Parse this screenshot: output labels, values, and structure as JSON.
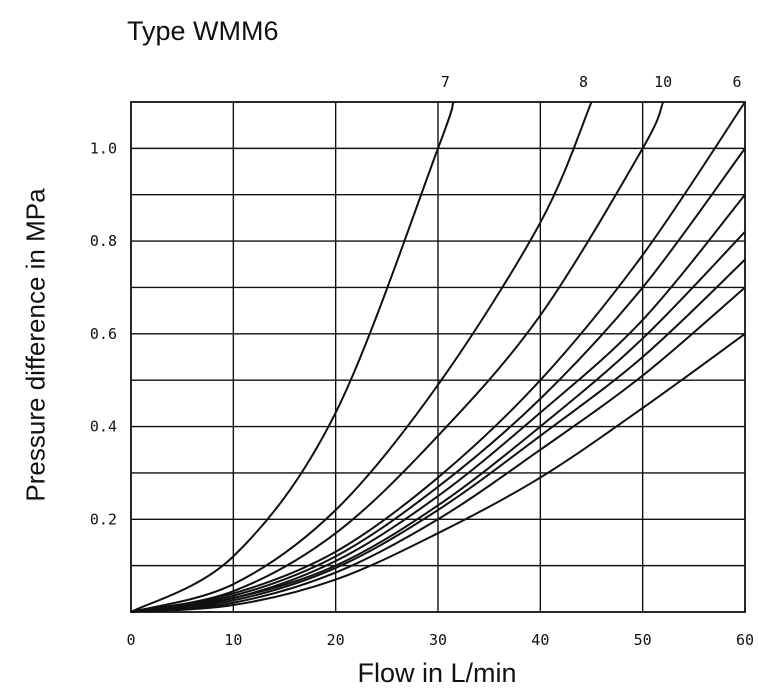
{
  "chart_data": {
    "type": "line",
    "title": "Type WMM6",
    "xlabel": "Flow in L/min",
    "ylabel": "Pressure difference in MPa",
    "xlim": [
      0,
      60
    ],
    "ylim": [
      0,
      1.1
    ],
    "x_ticks": [
      "0",
      "10",
      "20",
      "30",
      "40",
      "50",
      "60"
    ],
    "y_ticks": [
      "0.2",
      "0.4",
      "0.6",
      "0.8",
      "1.0"
    ],
    "grid": true,
    "series": [
      {
        "name": "7",
        "x": [
          0,
          10,
          20,
          30,
          31.5
        ],
        "y": [
          0,
          0.12,
          0.43,
          1.0,
          1.1
        ]
      },
      {
        "name": "8",
        "x": [
          0,
          10,
          20,
          30,
          40,
          45
        ],
        "y": [
          0,
          0.06,
          0.22,
          0.49,
          0.84,
          1.1
        ]
      },
      {
        "name": "10",
        "x": [
          0,
          10,
          20,
          30,
          40,
          50,
          52
        ],
        "y": [
          0,
          0.045,
          0.17,
          0.38,
          0.64,
          1.0,
          1.1
        ]
      },
      {
        "name": "6",
        "x": [
          0,
          10,
          20,
          30,
          40,
          50,
          60
        ],
        "y": [
          0,
          0.04,
          0.13,
          0.29,
          0.5,
          0.77,
          1.1
        ]
      },
      {
        "x": [
          0,
          10,
          20,
          30,
          40,
          50,
          60
        ],
        "y": [
          0,
          0.035,
          0.12,
          0.27,
          0.46,
          0.7,
          1.0
        ]
      },
      {
        "x": [
          0,
          10,
          20,
          30,
          40,
          50,
          60
        ],
        "y": [
          0,
          0.03,
          0.11,
          0.25,
          0.43,
          0.63,
          0.9
        ]
      },
      {
        "x": [
          0,
          10,
          20,
          30,
          40,
          50,
          60
        ],
        "y": [
          0,
          0.03,
          0.1,
          0.23,
          0.4,
          0.59,
          0.82
        ]
      },
      {
        "x": [
          0,
          10,
          20,
          30,
          40,
          50,
          60
        ],
        "y": [
          0,
          0.025,
          0.095,
          0.22,
          0.38,
          0.55,
          0.76
        ]
      },
      {
        "x": [
          0,
          10,
          20,
          30,
          40,
          50,
          60
        ],
        "y": [
          0,
          0.02,
          0.085,
          0.2,
          0.35,
          0.51,
          0.7
        ]
      },
      {
        "x": [
          0,
          10,
          20,
          30,
          40,
          50,
          60
        ],
        "y": [
          0,
          0.015,
          0.07,
          0.17,
          0.29,
          0.44,
          0.6
        ]
      }
    ]
  }
}
